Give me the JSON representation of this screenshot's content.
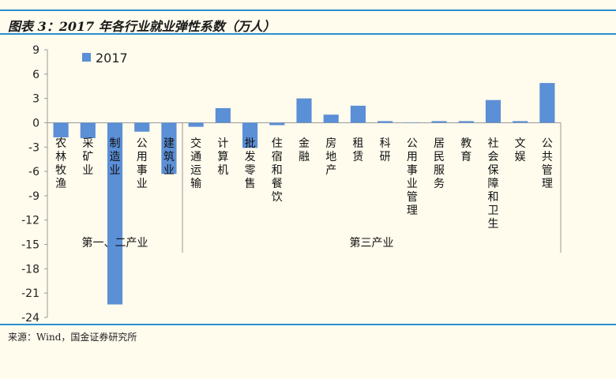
{
  "title": "图表 3：2017 年各行业就业弹性系数（万人）",
  "source": "来源：Wind，国金证券研究所",
  "chart_data": {
    "type": "bar",
    "series": [
      {
        "name": "2017",
        "color": "#5b8fd6",
        "values": [
          -1.8,
          -1.9,
          -22.4,
          -1.1,
          -6.3,
          -0.5,
          1.8,
          -3.1,
          -0.3,
          3.0,
          1.0,
          2.1,
          0.2,
          0.0,
          0.2,
          0.2,
          2.8,
          0.2,
          4.9
        ]
      }
    ],
    "categories": [
      "农林牧渔",
      "采矿业",
      "制造业",
      "公用事业",
      "建筑业",
      "交通运输",
      "计算机",
      "批发零售",
      "住宿和餐饮",
      "金融",
      "房地产",
      "租赁",
      "科研",
      "公用事业管理",
      "居民服务",
      "教育",
      "社会保障和卫生",
      "文娱",
      "公共管理"
    ],
    "groups": [
      {
        "label": "第一、二产业",
        "start": 0,
        "end": 4
      },
      {
        "label": "第三产业",
        "start": 5,
        "end": 18
      }
    ],
    "yticks": [
      9,
      6,
      3,
      0,
      -3,
      -6,
      -9,
      -12,
      -15,
      -18,
      -21,
      -24
    ],
    "ylim": [
      -24,
      9
    ],
    "xlabel": "",
    "ylabel": "",
    "legend": "top-left"
  }
}
